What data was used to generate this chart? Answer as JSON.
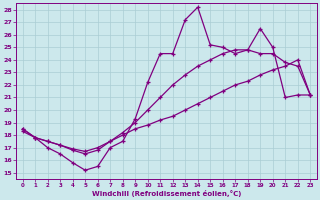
{
  "background_color": "#cce8ec",
  "grid_color": "#aacdd4",
  "line_color": "#800080",
  "xlabel": "Windchill (Refroidissement éolien,°C)",
  "xlim": [
    -0.5,
    23.5
  ],
  "ylim": [
    14.5,
    28.5
  ],
  "xticks": [
    0,
    1,
    2,
    3,
    4,
    5,
    6,
    7,
    8,
    9,
    10,
    11,
    12,
    13,
    14,
    15,
    16,
    17,
    18,
    19,
    20,
    21,
    22,
    23
  ],
  "yticks": [
    15,
    16,
    17,
    18,
    19,
    20,
    21,
    22,
    23,
    24,
    25,
    26,
    27,
    28
  ],
  "line1_x": [
    0,
    1,
    2,
    3,
    4,
    5,
    6,
    7,
    8,
    9,
    10,
    11,
    12,
    13,
    14,
    15,
    16,
    17,
    18,
    19,
    20,
    21,
    22,
    23
  ],
  "line1_y": [
    18.5,
    17.8,
    17.0,
    16.5,
    15.8,
    15.2,
    15.5,
    17.0,
    17.5,
    19.3,
    22.2,
    24.5,
    24.5,
    27.2,
    28.2,
    25.2,
    25.0,
    24.5,
    24.8,
    26.5,
    25.0,
    21.0,
    21.2,
    21.2
  ],
  "line2_x": [
    0,
    1,
    2,
    3,
    4,
    5,
    6,
    7,
    8,
    9,
    10,
    11,
    12,
    13,
    14,
    15,
    16,
    17,
    18,
    19,
    20,
    21,
    22,
    23
  ],
  "line2_y": [
    18.5,
    17.8,
    17.5,
    17.2,
    16.8,
    16.5,
    16.8,
    17.5,
    18.2,
    19.0,
    20.0,
    21.0,
    22.0,
    22.8,
    23.5,
    24.0,
    24.5,
    24.8,
    24.8,
    24.5,
    24.5,
    23.8,
    23.5,
    21.2
  ],
  "line3_x": [
    0,
    1,
    2,
    3,
    4,
    5,
    6,
    7,
    8,
    9,
    10,
    11,
    12,
    13,
    14,
    15,
    16,
    17,
    18,
    19,
    20,
    21,
    22,
    23
  ],
  "line3_y": [
    18.3,
    17.8,
    17.5,
    17.2,
    16.9,
    16.7,
    17.0,
    17.5,
    18.0,
    18.5,
    18.8,
    19.2,
    19.5,
    20.0,
    20.5,
    21.0,
    21.5,
    22.0,
    22.3,
    22.8,
    23.2,
    23.5,
    24.0,
    21.2
  ]
}
